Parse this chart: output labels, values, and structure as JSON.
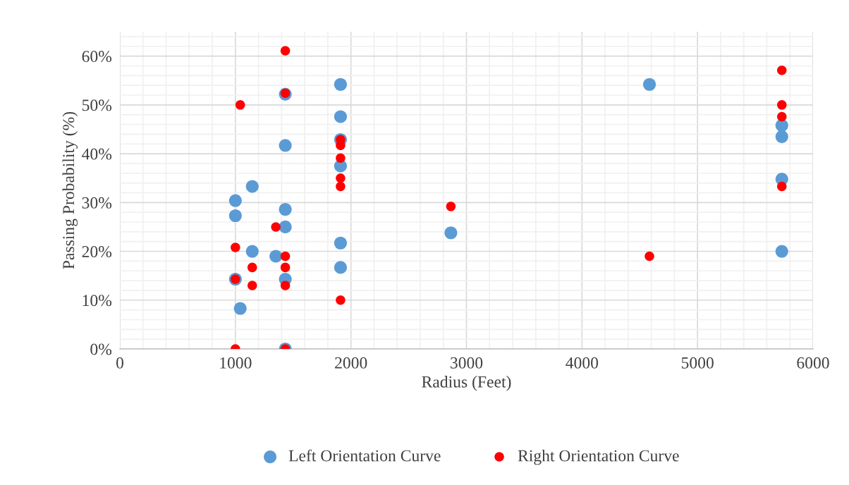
{
  "chart_data": {
    "type": "scatter",
    "xlabel": "Radius (Feet)",
    "ylabel": "Passing Probability (%)",
    "xlim": [
      0,
      6000
    ],
    "xticks": [
      0,
      1000,
      2000,
      3000,
      4000,
      5000,
      6000
    ],
    "ylim": [
      0,
      65
    ],
    "yticks": [
      {
        "value": 0,
        "label": "0%"
      },
      {
        "value": 10,
        "label": "10%"
      },
      {
        "value": 20,
        "label": "20%"
      },
      {
        "value": 30,
        "label": "30%"
      },
      {
        "value": 40,
        "label": "40%"
      },
      {
        "value": 50,
        "label": "50%"
      },
      {
        "value": 60,
        "label": "60%"
      }
    ],
    "grid": true,
    "legend": "bottom",
    "marker": "circle",
    "series": [
      {
        "name": "Left Orientation Curve",
        "color": "#5b9bd5",
        "x": [
          1000,
          1000,
          1000,
          1042,
          1146,
          1146,
          1350,
          1432,
          1432,
          1432,
          1432,
          1432,
          1432,
          1910,
          1910,
          1910,
          1910,
          1910,
          1910,
          2865,
          4584,
          5730,
          5730,
          5730,
          5730
        ],
        "values": [
          30.4,
          27.3,
          14.3,
          8.3,
          33.3,
          20.0,
          19.0,
          52.2,
          41.7,
          28.6,
          25.0,
          14.3,
          0,
          54.2,
          47.6,
          42.9,
          37.5,
          21.7,
          16.7,
          23.8,
          54.2,
          45.8,
          43.5,
          34.8,
          20.0
        ]
      },
      {
        "name": "Right Orientation Curve",
        "color": "#ff0000",
        "x": [
          1000,
          1000,
          1000,
          1042,
          1146,
          1146,
          1350,
          1432,
          1432,
          1432,
          1432,
          1432,
          1432,
          1910,
          1910,
          1910,
          1910,
          1910,
          1910,
          2865,
          4584,
          5730,
          5730,
          5730,
          5730
        ],
        "values": [
          20.8,
          14.3,
          0,
          50.0,
          16.7,
          13.0,
          25.0,
          61.1,
          52.4,
          19.0,
          16.7,
          13.0,
          0,
          42.9,
          41.7,
          39.1,
          35.0,
          33.3,
          10.0,
          29.2,
          19.0,
          57.1,
          50.0,
          47.6,
          33.3
        ]
      }
    ]
  }
}
